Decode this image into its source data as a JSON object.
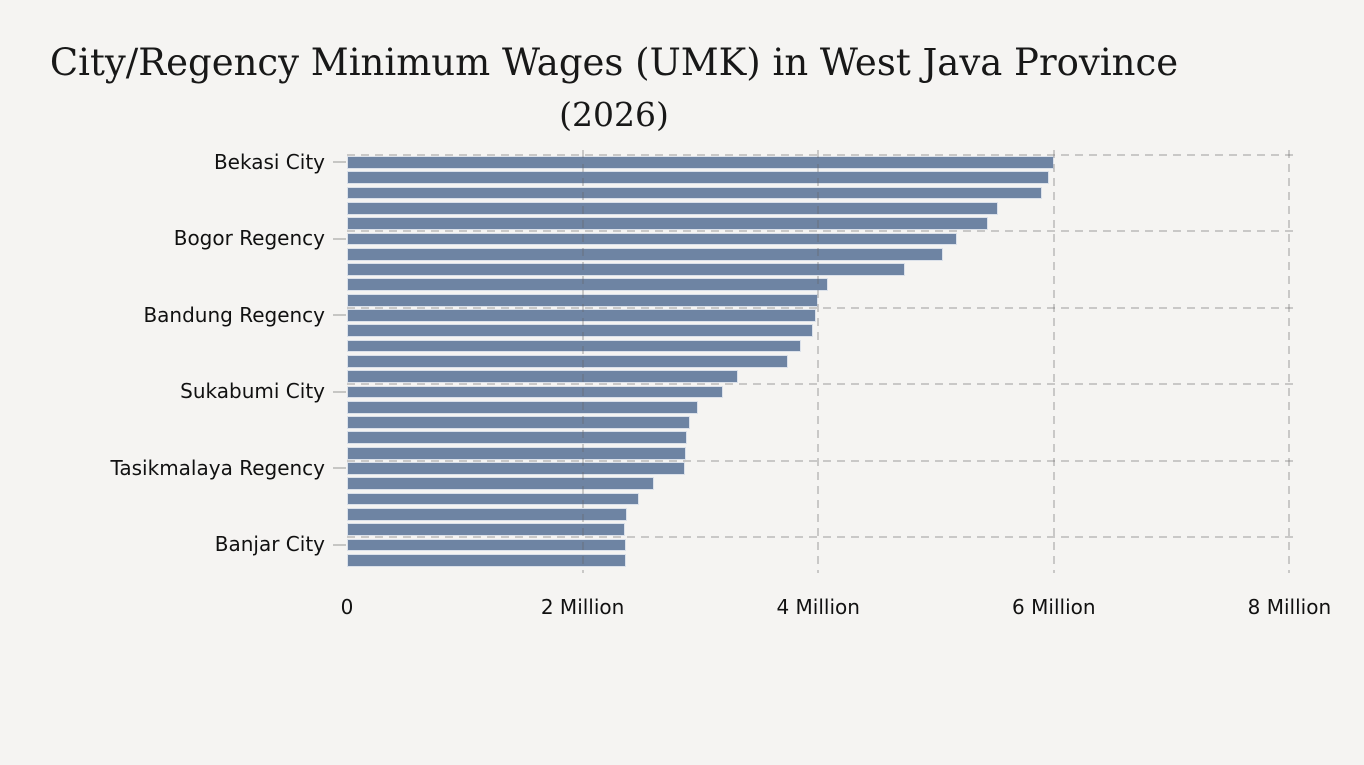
{
  "chart_data": {
    "type": "bar",
    "orientation": "horizontal",
    "title": "City/Regency Minimum Wages (UMK) in West Java Province (2026)",
    "title_line1": "City/Regency Minimum Wages (UMK) in West Java Province",
    "title_line2": "(2026)",
    "xlabel": "",
    "ylabel": "",
    "unit": "Million (Rupiah)",
    "bar_count": 27,
    "xlim": [
      0,
      8.05
    ],
    "grid": "dashed",
    "legend": "none",
    "sort": "descending",
    "x_ticks": [
      {
        "value": 0,
        "label": "0"
      },
      {
        "value": 2,
        "label": "2 Million"
      },
      {
        "value": 4,
        "label": "4 Million"
      },
      {
        "value": 6,
        "label": "6 Million"
      },
      {
        "value": 8,
        "label": "8 Million"
      }
    ],
    "y_tick_labels": [
      {
        "bar_index": 0,
        "label": "Bekasi City"
      },
      {
        "bar_index": 5,
        "label": "Bogor Regency"
      },
      {
        "bar_index": 10,
        "label": "Bandung Regency"
      },
      {
        "bar_index": 15,
        "label": "Sukabumi City"
      },
      {
        "bar_index": 20,
        "label": "Tasikmalaya Regency"
      },
      {
        "bar_index": 25,
        "label": "Banjar City"
      }
    ],
    "values_millions": [
      6.0,
      5.96,
      5.9,
      5.53,
      5.44,
      5.18,
      5.06,
      4.74,
      4.08,
      4.0,
      3.98,
      3.96,
      3.85,
      3.74,
      3.32,
      3.19,
      2.98,
      2.91,
      2.89,
      2.88,
      2.87,
      2.61,
      2.48,
      2.38,
      2.36,
      2.37,
      2.37
    ]
  },
  "colors": {
    "bar_fill": "#6E84A3",
    "bar_edge": "#DBE1EA",
    "background": "#F5F4F2",
    "grid_line": "#C9C9C7",
    "text": "#1A1A1A"
  }
}
